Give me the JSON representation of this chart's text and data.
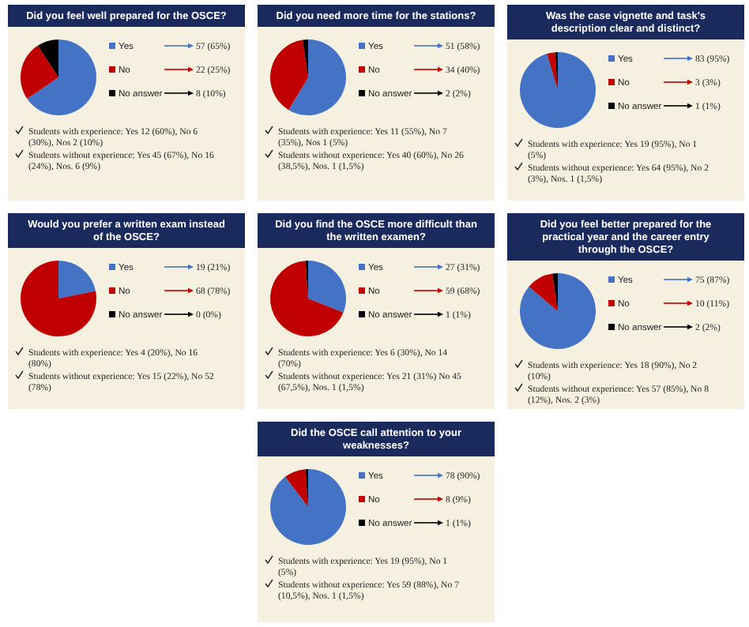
{
  "chart_data": [
    {
      "type": "pie",
      "title": "Did you feel well prepared for the OSCE?",
      "categories": [
        "Yes",
        "No",
        "No answer"
      ],
      "values": [
        57,
        22,
        8
      ],
      "colors": [
        "#4472c4",
        "#c00000",
        "#000000"
      ],
      "value_labels": [
        "57 (65%)",
        "22 (25%)",
        "8 (10%)"
      ],
      "legend": "right",
      "annotations": [
        "Students with experience: Yes 12 (60%), No 6 (30%), Nos 2 (10%)",
        "Students without experience: Yes 45 (67%), No 16 (24%), Nos. 6 (9%)"
      ]
    },
    {
      "type": "pie",
      "title": "Did you need more time for the stations?",
      "categories": [
        "Yes",
        "No",
        "No answer"
      ],
      "values": [
        51,
        34,
        2
      ],
      "colors": [
        "#4472c4",
        "#c00000",
        "#000000"
      ],
      "value_labels": [
        "51 (58%)",
        "34 (40%)",
        "2 (2%)"
      ],
      "legend": "right",
      "annotations": [
        "Students with experience: Yes 11 (55%), No 7 (35%), Nos 1 (5%)",
        "Students without experience: Yes 40 (60%), No 26 (38,5%), Nos. 1 (1,5%)"
      ]
    },
    {
      "type": "pie",
      "title": "Was the case vignette and task's description clear and distinct?",
      "categories": [
        "Yes",
        "No",
        "No answer"
      ],
      "values": [
        83,
        3,
        1
      ],
      "colors": [
        "#4472c4",
        "#c00000",
        "#000000"
      ],
      "value_labels": [
        "83 (95%)",
        "3 (3%)",
        "1 (1%)"
      ],
      "legend": "right",
      "annotations": [
        "Students with experience: Yes 19 (95%), No 1 (5%)",
        "Students without experience: Yes 64 (95%), No 2 (3%), Nos. 1 (1,5%)"
      ]
    },
    {
      "type": "pie",
      "title": "Would you prefer a written exam instead of the OSCE?",
      "categories": [
        "Yes",
        "No",
        "No answer"
      ],
      "values": [
        19,
        68,
        0
      ],
      "colors": [
        "#4472c4",
        "#c00000",
        "#000000"
      ],
      "value_labels": [
        "19 (21%)",
        "68 (78%)",
        "0 (0%)"
      ],
      "legend": "right",
      "annotations": [
        "Students with experience: Yes 4 (20%), No 16 (80%)",
        "Students without experience: Yes 15 (22%), No 52 (78%)"
      ]
    },
    {
      "type": "pie",
      "title": "Did you find the OSCE more difficult than the written examen?",
      "categories": [
        "Yes",
        "No",
        "No answer"
      ],
      "values": [
        27,
        59,
        1
      ],
      "colors": [
        "#4472c4",
        "#c00000",
        "#000000"
      ],
      "value_labels": [
        "27 (31%)",
        "59 (68%)",
        "1 (1%)"
      ],
      "legend": "right",
      "annotations": [
        "Students with experience: Yes 6 (30%), No 14 (70%)",
        "Students without experience: Yes 21 (31%) No 45 (67,5%), Nos. 1 (1,5%)"
      ]
    },
    {
      "type": "pie",
      "title": "Did you feel better prepared for the practical year and the career entry through the OSCE?",
      "categories": [
        "Yes",
        "No",
        "No answer"
      ],
      "values": [
        75,
        10,
        2
      ],
      "colors": [
        "#4472c4",
        "#c00000",
        "#000000"
      ],
      "value_labels": [
        "75 (87%)",
        "10 (11%)",
        "2 (2%)"
      ],
      "legend": "right",
      "annotations": [
        "Students with experience: Yes 18 (90%), No 2 (10%)",
        "Students without experience: Yes 57 (85%), No 8 (12%), Nos. 2 (3%)"
      ]
    },
    {
      "type": "pie",
      "title": "Did the OSCE call attention to your weaknesses?",
      "categories": [
        "Yes",
        "No",
        "No answer"
      ],
      "values": [
        78,
        8,
        1
      ],
      "colors": [
        "#4472c4",
        "#c00000",
        "#000000"
      ],
      "value_labels": [
        "78 (90%)",
        "8 (9%)",
        "1 (1%)"
      ],
      "legend": "right",
      "annotations": [
        "Students with experience: Yes 19 (95%), No 1 (5%)",
        "Students without experience: Yes 59 (88%), No 7 (10,5%), Nos. 1 (1,5%)"
      ]
    }
  ]
}
